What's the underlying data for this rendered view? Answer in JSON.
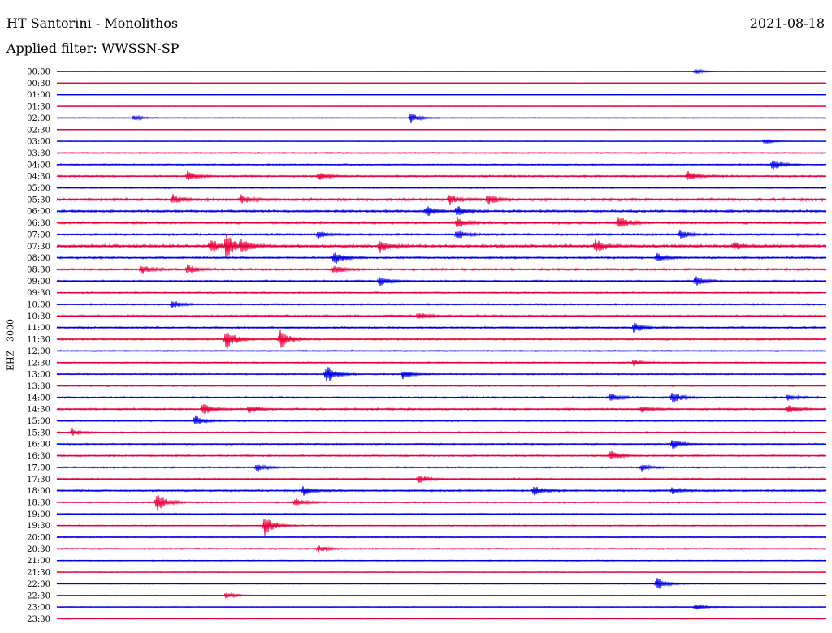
{
  "header": {
    "title": "HT Santorini - Monolithos",
    "date": "2021-08-18",
    "filter": "Applied filter: WWSSN-SP",
    "channel": "EHZ - 3000"
  },
  "colors": {
    "series_a": "#0000e6",
    "series_b": "#e6003c"
  },
  "chart_data": {
    "type": "line",
    "title": "HT Santorini - Monolithos",
    "ylabel": "EHZ - 3000",
    "tick_labels": [
      "00:00",
      "00:30",
      "01:00",
      "01:30",
      "02:00",
      "02:30",
      "03:00",
      "03:30",
      "04:00",
      "04:30",
      "05:00",
      "05:30",
      "06:00",
      "06:30",
      "07:00",
      "07:30",
      "08:00",
      "08:30",
      "09:00",
      "09:30",
      "10:00",
      "10:30",
      "11:00",
      "11:30",
      "12:00",
      "12:30",
      "13:00",
      "13:30",
      "14:00",
      "14:30",
      "15:00",
      "15:30",
      "16:00",
      "16:30",
      "17:00",
      "17:30",
      "18:00",
      "18:30",
      "19:00",
      "19:30",
      "20:00",
      "20:30",
      "21:00",
      "21:30",
      "22:00",
      "22:30",
      "23:00",
      "23:30"
    ],
    "trace_noise_level": [
      0.3,
      0.4,
      0.3,
      0.5,
      0.6,
      0.4,
      0.5,
      0.9,
      1.0,
      1.2,
      0.9,
      1.8,
      1.6,
      1.6,
      1.4,
      2.0,
      1.3,
      1.4,
      1.2,
      1.0,
      1.1,
      1.4,
      1.3,
      1.2,
      0.9,
      1.0,
      0.9,
      1.0,
      1.2,
      1.3,
      1.0,
      1.1,
      1.0,
      1.1,
      1.0,
      1.2,
      1.3,
      1.0,
      0.9,
      0.8,
      0.8,
      1.0,
      0.7,
      0.6,
      0.6,
      0.6,
      0.6,
      0.5
    ],
    "events": [
      {
        "row": 0,
        "t": 0.83,
        "amp": 3
      },
      {
        "row": 4,
        "t": 0.46,
        "amp": 6
      },
      {
        "row": 4,
        "t": 0.1,
        "amp": 3
      },
      {
        "row": 6,
        "t": 0.92,
        "amp": 3
      },
      {
        "row": 8,
        "t": 0.93,
        "amp": 7
      },
      {
        "row": 9,
        "t": 0.17,
        "amp": 6
      },
      {
        "row": 9,
        "t": 0.34,
        "amp": 5
      },
      {
        "row": 9,
        "t": 0.82,
        "amp": 6
      },
      {
        "row": 11,
        "t": 0.15,
        "amp": 6
      },
      {
        "row": 11,
        "t": 0.24,
        "amp": 5
      },
      {
        "row": 11,
        "t": 0.51,
        "amp": 6
      },
      {
        "row": 11,
        "t": 0.56,
        "amp": 7
      },
      {
        "row": 12,
        "t": 0.48,
        "amp": 7
      },
      {
        "row": 12,
        "t": 0.52,
        "amp": 6
      },
      {
        "row": 13,
        "t": 0.52,
        "amp": 6
      },
      {
        "row": 13,
        "t": 0.73,
        "amp": 8
      },
      {
        "row": 14,
        "t": 0.34,
        "amp": 5
      },
      {
        "row": 14,
        "t": 0.52,
        "amp": 6
      },
      {
        "row": 14,
        "t": 0.81,
        "amp": 6
      },
      {
        "row": 15,
        "t": 0.2,
        "amp": 8
      },
      {
        "row": 15,
        "t": 0.22,
        "amp": 14
      },
      {
        "row": 15,
        "t": 0.24,
        "amp": 7
      },
      {
        "row": 15,
        "t": 0.42,
        "amp": 8
      },
      {
        "row": 15,
        "t": 0.7,
        "amp": 8
      },
      {
        "row": 15,
        "t": 0.88,
        "amp": 5
      },
      {
        "row": 16,
        "t": 0.36,
        "amp": 9
      },
      {
        "row": 16,
        "t": 0.78,
        "amp": 5
      },
      {
        "row": 17,
        "t": 0.11,
        "amp": 6
      },
      {
        "row": 17,
        "t": 0.17,
        "amp": 6
      },
      {
        "row": 17,
        "t": 0.36,
        "amp": 5
      },
      {
        "row": 18,
        "t": 0.42,
        "amp": 6
      },
      {
        "row": 18,
        "t": 0.83,
        "amp": 6
      },
      {
        "row": 20,
        "t": 0.15,
        "amp": 5
      },
      {
        "row": 21,
        "t": 0.47,
        "amp": 4
      },
      {
        "row": 22,
        "t": 0.75,
        "amp": 6
      },
      {
        "row": 23,
        "t": 0.22,
        "amp": 14
      },
      {
        "row": 23,
        "t": 0.29,
        "amp": 12
      },
      {
        "row": 25,
        "t": 0.75,
        "amp": 4
      },
      {
        "row": 26,
        "t": 0.35,
        "amp": 12
      },
      {
        "row": 26,
        "t": 0.45,
        "amp": 6
      },
      {
        "row": 28,
        "t": 0.72,
        "amp": 6
      },
      {
        "row": 28,
        "t": 0.8,
        "amp": 7
      },
      {
        "row": 28,
        "t": 0.95,
        "amp": 4
      },
      {
        "row": 29,
        "t": 0.19,
        "amp": 7
      },
      {
        "row": 29,
        "t": 0.25,
        "amp": 5
      },
      {
        "row": 29,
        "t": 0.76,
        "amp": 4
      },
      {
        "row": 29,
        "t": 0.95,
        "amp": 5
      },
      {
        "row": 30,
        "t": 0.18,
        "amp": 7
      },
      {
        "row": 31,
        "t": 0.02,
        "amp": 4
      },
      {
        "row": 32,
        "t": 0.8,
        "amp": 6
      },
      {
        "row": 33,
        "t": 0.72,
        "amp": 6
      },
      {
        "row": 34,
        "t": 0.26,
        "amp": 5
      },
      {
        "row": 34,
        "t": 0.76,
        "amp": 4
      },
      {
        "row": 35,
        "t": 0.47,
        "amp": 5
      },
      {
        "row": 36,
        "t": 0.32,
        "amp": 6
      },
      {
        "row": 36,
        "t": 0.62,
        "amp": 6
      },
      {
        "row": 36,
        "t": 0.8,
        "amp": 4
      },
      {
        "row": 37,
        "t": 0.13,
        "amp": 12
      },
      {
        "row": 37,
        "t": 0.31,
        "amp": 5
      },
      {
        "row": 39,
        "t": 0.27,
        "amp": 14
      },
      {
        "row": 41,
        "t": 0.34,
        "amp": 4
      },
      {
        "row": 44,
        "t": 0.78,
        "amp": 9
      },
      {
        "row": 45,
        "t": 0.22,
        "amp": 4
      },
      {
        "row": 46,
        "t": 0.83,
        "amp": 4
      }
    ]
  }
}
